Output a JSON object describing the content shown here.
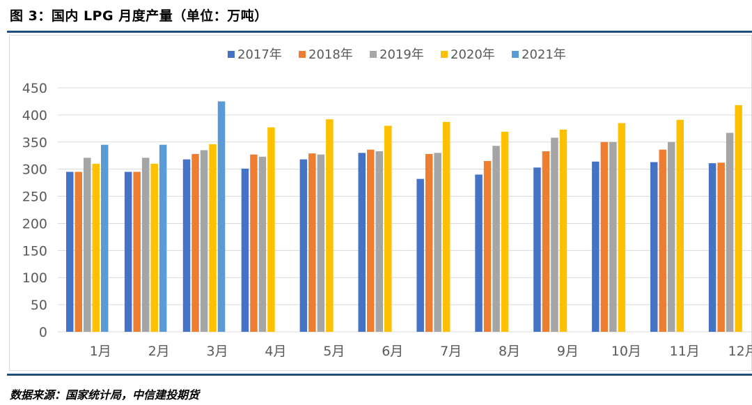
{
  "header": {
    "title": "图 3：国内 LPG 月度产量（单位：万吨）"
  },
  "footer": {
    "source": "数据来源：国家统计局，中信建投期货"
  },
  "chart_data": {
    "type": "bar",
    "categories": [
      "1月",
      "2月",
      "3月",
      "4月",
      "5月",
      "6月",
      "7月",
      "8月",
      "9月",
      "10月",
      "11月",
      "12月"
    ],
    "y_ticks": [
      "0",
      "50",
      "100",
      "150",
      "200",
      "250",
      "300",
      "350",
      "400",
      "450"
    ],
    "ylim": [
      0,
      450
    ],
    "grid": true,
    "legend_position": "top-center",
    "series": [
      {
        "name": "2017年",
        "color": "#4472c4",
        "values": [
          295,
          295,
          318,
          301,
          318,
          330,
          282,
          290,
          303,
          314,
          313,
          311
        ]
      },
      {
        "name": "2018年",
        "color": "#ed7d31",
        "values": [
          295,
          295,
          328,
          327,
          329,
          336,
          328,
          315,
          333,
          350,
          336,
          312
        ]
      },
      {
        "name": "2019年",
        "color": "#a5a5a5",
        "values": [
          321,
          321,
          335,
          323,
          327,
          333,
          330,
          343,
          358,
          350,
          350,
          367
        ]
      },
      {
        "name": "2020年",
        "color": "#ffc000",
        "values": [
          310,
          310,
          346,
          377,
          392,
          380,
          387,
          369,
          373,
          385,
          391,
          418
        ]
      },
      {
        "name": "2021年",
        "color": "#5b9bd5",
        "values": [
          345,
          345,
          425,
          null,
          null,
          null,
          null,
          null,
          null,
          null,
          null,
          null
        ]
      }
    ]
  }
}
